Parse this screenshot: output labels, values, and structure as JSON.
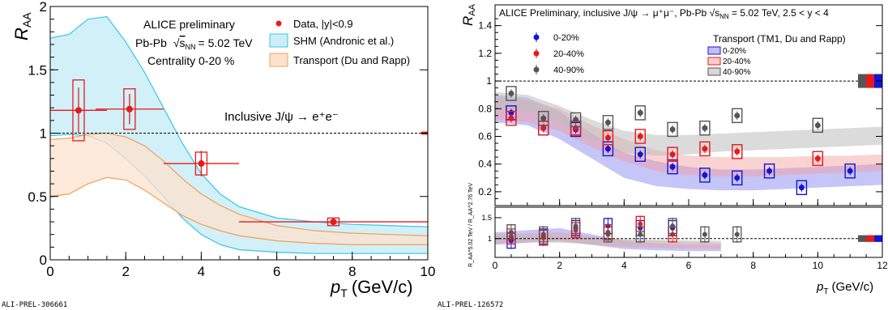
{
  "left": {
    "chart_data": {
      "type": "scatter",
      "xlabel_main": "p",
      "xlabel_sub": "T",
      "xlabel_unit": "(GeV/c)",
      "ylabel_main": "R",
      "ylabel_sub": "AA",
      "xlim": [
        0,
        10
      ],
      "ylim": [
        0,
        2
      ],
      "xticks": [
        "0",
        "2",
        "4",
        "6",
        "8",
        "10"
      ],
      "yticks": [
        "0",
        "0.5",
        "1",
        "1.5",
        "2"
      ],
      "reference_line": 1,
      "annotations": {
        "collab": "ALICE preliminary",
        "system_prefix": "Pb-Pb",
        "system_sqrt": "s",
        "system_sub": "NN",
        "system_energy": "= 5.02 TeV",
        "centrality": "Centrality 0-20 %",
        "process": "Inclusive J/ψ → e⁺e⁻",
        "plot_id": "ALI-PREL-306661"
      },
      "legend": {
        "data": "Data, |y|<0.9",
        "shm": "SHM (Andronic et al.)",
        "transport": "Transport (Du and Rapp)"
      },
      "series": [
        {
          "name": "Data, |y|<0.9",
          "color": "#e8191b",
          "points": [
            {
              "x": 0.75,
              "y": 1.18,
              "xerr": 0.75,
              "yerr": 0.18,
              "sys": 0.24
            },
            {
              "x": 2.1,
              "y": 1.19,
              "xerr": 0.9,
              "yerr": 0.12,
              "sys": 0.16
            },
            {
              "x": 4.0,
              "y": 0.76,
              "xerr": 1.0,
              "yerr": 0.1,
              "sys": 0.09
            },
            {
              "x": 7.5,
              "y": 0.3,
              "xerr": 2.5,
              "yerr": 0.03,
              "sys": 0.03
            }
          ]
        }
      ],
      "bands": [
        {
          "name": "SHM (Andronic et al.)",
          "fill": "#cdeef7",
          "stroke": "#36c5e8",
          "x": [
            0,
            0.5,
            1.0,
            1.5,
            2.0,
            2.5,
            3.0,
            3.5,
            4.0,
            4.5,
            5.0,
            6.0,
            7.0,
            8.0,
            9.0,
            10.0
          ],
          "upper": [
            1.75,
            1.78,
            1.9,
            1.92,
            1.72,
            1.48,
            1.2,
            0.92,
            0.68,
            0.52,
            0.42,
            0.33,
            0.3,
            0.28,
            0.27,
            0.26
          ],
          "lower": [
            0.98,
            0.99,
            0.98,
            0.92,
            0.8,
            0.66,
            0.5,
            0.33,
            0.2,
            0.12,
            0.08,
            0.06,
            0.05,
            0.05,
            0.05,
            0.05
          ]
        },
        {
          "name": "Transport (Du and Rapp)",
          "fill": "#fde3cd",
          "stroke": "#f0a05a",
          "x": [
            0,
            0.5,
            1.0,
            1.5,
            2.0,
            2.5,
            3.0,
            3.5,
            4.0,
            4.5,
            5.0,
            6.0,
            7.0,
            8.0,
            9.0,
            10.0
          ],
          "upper": [
            0.95,
            0.96,
            0.99,
            1.0,
            0.97,
            0.9,
            0.78,
            0.64,
            0.52,
            0.43,
            0.36,
            0.27,
            0.23,
            0.21,
            0.2,
            0.19
          ],
          "lower": [
            0.5,
            0.52,
            0.6,
            0.65,
            0.63,
            0.55,
            0.45,
            0.35,
            0.28,
            0.23,
            0.19,
            0.15,
            0.13,
            0.12,
            0.12,
            0.12
          ]
        }
      ],
      "global_box": {
        "y": 1.0,
        "half": 0.012,
        "color": "#e8191b"
      }
    }
  },
  "right": {
    "chart_data": {
      "type": "scatter",
      "xlabel_main": "p",
      "xlabel_sub": "T",
      "xlabel_unit": "(GeV/c)",
      "ylabel_main": "R",
      "ylabel_sub": "AA",
      "ratio_ylabel": "R_AA^5.02 TeV / R_AA^2.76 TeV",
      "xlim": [
        0,
        12
      ],
      "ylim": [
        0.1,
        1.55
      ],
      "ratio_ylim": [
        0.55,
        1.75
      ],
      "xticks": [
        "0",
        "2",
        "4",
        "6",
        "8",
        "10",
        "12"
      ],
      "yticks": [
        "0.2",
        "0.4",
        "0.6",
        "0.8",
        "1",
        "1.2",
        "1.4"
      ],
      "ratio_yticks": [
        "1",
        "1.5"
      ],
      "reference_line": 1,
      "annotations": {
        "header": "ALICE Preliminary, inclusive J/ψ → μ⁺μ⁻, Pb-Pb √s",
        "header_sub": "NN",
        "header_tail": " = 5.02 TeV, 2.5 < y < 4",
        "plot_id": "ALI-PREL-126572"
      },
      "legend_points": [
        "0-20%",
        "20-40%",
        "40-90%"
      ],
      "legend_transport_title": "Transport (TM1, Du and Rapp)",
      "legend_transport": [
        "0-20%",
        "20-40%",
        "40-90%"
      ],
      "colors": {
        "c0": "#1414d6",
        "c1": "#e8191b",
        "c2": "#555555"
      },
      "series": [
        {
          "name": "0-20%",
          "color": "#1414d6",
          "x": [
            0.5,
            1.5,
            2.5,
            3.5,
            4.5,
            5.5,
            6.5,
            7.5,
            8.5,
            9.5,
            11.0
          ],
          "y": [
            0.77,
            0.66,
            0.65,
            0.51,
            0.47,
            0.38,
            0.32,
            0.3,
            0.35,
            0.23,
            0.35
          ],
          "ratio": [
            0.95,
            1.05,
            1.25,
            1.3,
            1.25,
            1.25,
            null,
            null,
            null,
            null,
            null
          ]
        },
        {
          "name": "20-40%",
          "color": "#e8191b",
          "x": [
            0.5,
            1.5,
            2.5,
            3.5,
            4.5,
            5.5,
            6.5,
            7.5,
            10.0
          ],
          "y": [
            0.73,
            0.66,
            0.66,
            0.59,
            0.6,
            0.47,
            0.51,
            0.49,
            0.44
          ],
          "ratio": [
            1.05,
            1.02,
            1.2,
            1.15,
            1.35,
            1.1,
            null,
            null,
            null
          ]
        },
        {
          "name": "40-90%",
          "color": "#555555",
          "x": [
            0.5,
            1.5,
            2.5,
            3.5,
            4.5,
            5.5,
            6.5,
            7.5,
            10.0
          ],
          "y": [
            0.91,
            0.73,
            0.72,
            0.7,
            0.77,
            0.65,
            0.66,
            0.75,
            0.68
          ],
          "ratio": [
            1.15,
            1.1,
            1.3,
            1.1,
            1.1,
            1.3,
            1.1,
            1.1,
            null
          ]
        }
      ],
      "bands": [
        {
          "name": "0-20%",
          "fill": "#7f7ff0",
          "opacity": 0.45,
          "x": [
            0,
            1,
            2,
            3,
            4,
            5,
            6,
            7,
            8,
            9,
            10,
            11,
            12
          ],
          "upper": [
            0.9,
            0.88,
            0.78,
            0.62,
            0.48,
            0.42,
            0.38,
            0.36,
            0.36,
            0.37,
            0.38,
            0.39,
            0.4
          ],
          "lower": [
            0.7,
            0.68,
            0.58,
            0.44,
            0.3,
            0.24,
            0.22,
            0.21,
            0.21,
            0.22,
            0.23,
            0.24,
            0.25
          ],
          "ratio_upper": [
            1.15,
            1.2,
            1.25,
            1.1,
            0.95,
            0.88,
            0.86,
            0.85,
            null,
            null,
            null,
            null,
            null
          ],
          "ratio_lower": [
            0.85,
            0.9,
            0.95,
            0.85,
            0.75,
            0.72,
            0.7,
            0.7,
            null,
            null,
            null,
            null,
            null
          ]
        },
        {
          "name": "20-40%",
          "fill": "#f59b9b",
          "opacity": 0.45,
          "x": [
            0,
            1,
            2,
            3,
            4,
            5,
            6,
            7,
            8,
            9,
            10,
            11,
            12
          ],
          "upper": [
            0.88,
            0.86,
            0.8,
            0.68,
            0.58,
            0.5,
            0.46,
            0.45,
            0.45,
            0.45,
            0.46,
            0.46,
            0.47
          ],
          "lower": [
            0.72,
            0.7,
            0.64,
            0.52,
            0.42,
            0.35,
            0.32,
            0.31,
            0.31,
            0.32,
            0.33,
            0.34,
            0.35
          ],
          "ratio_upper": [
            1.1,
            1.12,
            1.15,
            1.05,
            0.98,
            0.95,
            0.92,
            0.9,
            null,
            null,
            null,
            null,
            null
          ],
          "ratio_lower": [
            0.88,
            0.9,
            0.92,
            0.85,
            0.8,
            0.78,
            0.76,
            0.75,
            null,
            null,
            null,
            null,
            null
          ]
        },
        {
          "name": "40-90%",
          "fill": "#bdbdbd",
          "opacity": 0.55,
          "x": [
            0,
            1,
            2,
            3,
            4,
            5,
            6,
            7,
            8,
            9,
            10,
            11,
            12
          ],
          "upper": [
            0.92,
            0.9,
            0.82,
            0.72,
            0.64,
            0.61,
            0.61,
            0.62,
            0.63,
            0.64,
            0.65,
            0.66,
            0.67
          ],
          "lower": [
            0.8,
            0.78,
            0.7,
            0.58,
            0.48,
            0.46,
            0.47,
            0.49,
            0.5,
            0.51,
            0.52,
            0.53,
            0.54
          ],
          "ratio_upper": [
            1.1,
            1.08,
            1.05,
            1.0,
            0.98,
            0.97,
            0.96,
            0.95,
            null,
            null,
            null,
            null,
            null
          ],
          "ratio_lower": [
            0.92,
            0.92,
            0.9,
            0.88,
            0.86,
            0.85,
            0.85,
            0.85,
            null,
            null,
            null,
            null,
            null
          ]
        }
      ]
    }
  }
}
